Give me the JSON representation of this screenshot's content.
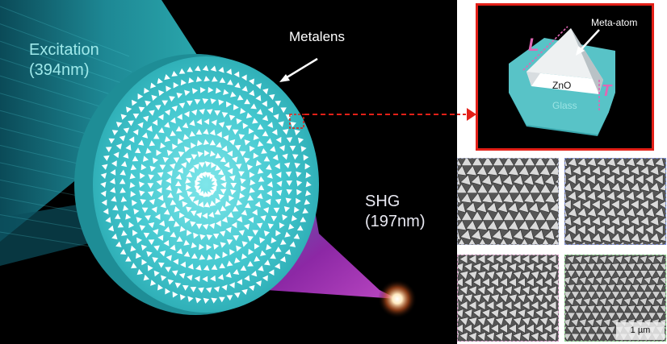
{
  "labels": {
    "excitation": "Excitation",
    "excitation_wavelength": "(394nm)",
    "metalens": "Metalens",
    "shg": "SHG",
    "shg_wavelength": "(197nm)",
    "meta_atom": "Meta-atom",
    "zno": "ZnO",
    "glass": "Glass",
    "length_symbol": "L",
    "thickness_symbol": "T",
    "scale_bar": "1 µm"
  },
  "colors": {
    "background": "#000000",
    "beam": "#2eb3b8",
    "lens": "#3fc6cc",
    "shg_beam": "#b02ec4",
    "inset_border": "#e32018",
    "dimension": "#e066b4"
  }
}
